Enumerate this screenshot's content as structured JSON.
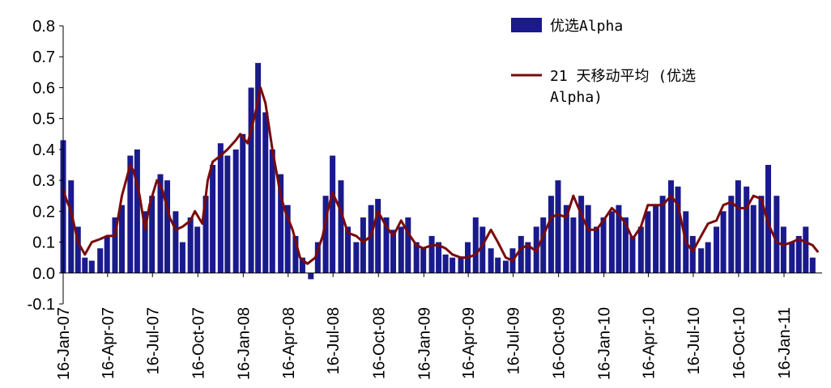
{
  "chart_data": {
    "type": "bar",
    "title": "",
    "xlabel": "",
    "ylabel": "",
    "ylim": [
      -0.1,
      0.8
    ],
    "yticks": [
      "-0.1",
      "0.0",
      "0.1",
      "0.2",
      "0.3",
      "0.4",
      "0.5",
      "0.6",
      "0.7",
      "0.8"
    ],
    "xticks": [
      "16-Jan-07",
      "16-Apr-07",
      "16-Jul-07",
      "16-Oct-07",
      "16-Jan-08",
      "16-Apr-08",
      "16-Jul-08",
      "16-Oct-08",
      "16-Jan-09",
      "16-Apr-09",
      "16-Jul-09",
      "16-Oct-09",
      "16-Jan-10",
      "16-Apr-10",
      "16-Jul-10",
      "16-Oct-10",
      "16-Jan-11"
    ],
    "grid": false,
    "legend_position": "top-right",
    "series": [
      {
        "name": "优选Alpha",
        "kind": "bar",
        "color": "#1a1a8c",
        "x": [
          "2007-01-16",
          "2007-02-01",
          "2007-02-15",
          "2007-03-01",
          "2007-03-15",
          "2007-04-01",
          "2007-04-15",
          "2007-05-01",
          "2007-05-15",
          "2007-06-01",
          "2007-06-15",
          "2007-07-01",
          "2007-07-15",
          "2007-08-01",
          "2007-08-15",
          "2007-09-01",
          "2007-09-15",
          "2007-10-01",
          "2007-10-15",
          "2007-11-01",
          "2007-11-15",
          "2007-12-01",
          "2007-12-15",
          "2008-01-01",
          "2008-01-15",
          "2008-02-01",
          "2008-02-15",
          "2008-03-01",
          "2008-03-15",
          "2008-04-01",
          "2008-04-15",
          "2008-05-01",
          "2008-05-15",
          "2008-06-01",
          "2008-06-15",
          "2008-07-01",
          "2008-07-15",
          "2008-08-01",
          "2008-08-15",
          "2008-09-01",
          "2008-09-15",
          "2008-10-01",
          "2008-10-15",
          "2008-11-01",
          "2008-11-15",
          "2008-12-01",
          "2008-12-15",
          "2009-01-01",
          "2009-01-15",
          "2009-02-01",
          "2009-02-15",
          "2009-03-01",
          "2009-03-15",
          "2009-04-01",
          "2009-04-15",
          "2009-05-01",
          "2009-05-15",
          "2009-06-01",
          "2009-06-15",
          "2009-07-01",
          "2009-07-15",
          "2009-08-01",
          "2009-08-15",
          "2009-09-01",
          "2009-09-15",
          "2009-10-01",
          "2009-10-15",
          "2009-11-01",
          "2009-11-15",
          "2009-12-01",
          "2009-12-15",
          "2010-01-01",
          "2010-01-15",
          "2010-02-01",
          "2010-02-15",
          "2010-03-01",
          "2010-03-15",
          "2010-04-01",
          "2010-04-15",
          "2010-05-01",
          "2010-05-15",
          "2010-06-01",
          "2010-06-15",
          "2010-07-01",
          "2010-07-15",
          "2010-08-01",
          "2010-08-15",
          "2010-09-01",
          "2010-09-15",
          "2010-10-01",
          "2010-10-15",
          "2010-11-01",
          "2010-11-15",
          "2010-12-01",
          "2010-12-15",
          "2011-01-01",
          "2011-01-15",
          "2011-02-01",
          "2011-02-15",
          "2011-03-01",
          "2011-03-15"
        ],
        "values": [
          0.43,
          0.3,
          0.15,
          0.05,
          0.04,
          0.08,
          0.12,
          0.18,
          0.22,
          0.38,
          0.4,
          0.2,
          0.25,
          0.32,
          0.3,
          0.2,
          0.1,
          0.18,
          0.15,
          0.25,
          0.35,
          0.42,
          0.38,
          0.4,
          0.45,
          0.6,
          0.68,
          0.52,
          0.4,
          0.32,
          0.22,
          0.12,
          0.05,
          -0.02,
          0.1,
          0.25,
          0.38,
          0.3,
          0.15,
          0.1,
          0.18,
          0.22,
          0.24,
          0.18,
          0.14,
          0.15,
          0.18,
          0.1,
          0.08,
          0.12,
          0.1,
          0.06,
          0.05,
          0.05,
          0.1,
          0.18,
          0.15,
          0.08,
          0.05,
          0.04,
          0.08,
          0.12,
          0.1,
          0.15,
          0.18,
          0.25,
          0.3,
          0.22,
          0.18,
          0.25,
          0.22,
          0.15,
          0.18,
          0.2,
          0.22,
          0.18,
          0.12,
          0.15,
          0.2,
          0.22,
          0.25,
          0.3,
          0.28,
          0.2,
          0.12,
          0.08,
          0.1,
          0.15,
          0.2,
          0.25,
          0.3,
          0.28,
          0.22,
          0.25,
          0.35,
          0.25,
          0.15,
          0.1,
          0.12,
          0.15,
          0.05
        ]
      },
      {
        "name": "21 天移动平均 (优选Alpha)",
        "kind": "line",
        "color": "#7a0a0a",
        "x": [
          "2007-01-16",
          "2007-01-22",
          "2007-02-01",
          "2007-02-15",
          "2007-03-01",
          "2007-03-15",
          "2007-04-01",
          "2007-04-15",
          "2007-05-01",
          "2007-05-15",
          "2007-06-01",
          "2007-06-08",
          "2007-06-20",
          "2007-07-01",
          "2007-07-10",
          "2007-07-25",
          "2007-08-05",
          "2007-08-20",
          "2007-09-01",
          "2007-09-15",
          "2007-10-01",
          "2007-10-10",
          "2007-10-25",
          "2007-11-05",
          "2007-11-15",
          "2007-12-01",
          "2007-12-15",
          "2008-01-01",
          "2008-01-10",
          "2008-01-25",
          "2008-02-10",
          "2008-02-20",
          "2008-03-01",
          "2008-03-15",
          "2008-04-01",
          "2008-04-10",
          "2008-04-25",
          "2008-05-10",
          "2008-05-25",
          "2008-06-10",
          "2008-06-25",
          "2008-07-05",
          "2008-07-15",
          "2008-08-01",
          "2008-08-15",
          "2008-09-01",
          "2008-09-15",
          "2008-10-01",
          "2008-10-15",
          "2008-11-01",
          "2008-11-15",
          "2008-12-01",
          "2008-12-15",
          "2009-01-01",
          "2009-01-15",
          "2009-02-01",
          "2009-02-15",
          "2009-03-01",
          "2009-03-15",
          "2009-04-01",
          "2009-04-15",
          "2009-05-01",
          "2009-05-15",
          "2009-06-01",
          "2009-06-15",
          "2009-07-01",
          "2009-07-15",
          "2009-08-01",
          "2009-08-15",
          "2009-09-01",
          "2009-09-15",
          "2009-10-01",
          "2009-10-15",
          "2009-11-01",
          "2009-11-15",
          "2009-12-01",
          "2009-12-15",
          "2010-01-01",
          "2010-01-15",
          "2010-02-01",
          "2010-02-15",
          "2010-03-01",
          "2010-03-15",
          "2010-04-01",
          "2010-04-15",
          "2010-05-01",
          "2010-05-15",
          "2010-06-01",
          "2010-06-15",
          "2010-07-01",
          "2010-07-15",
          "2010-08-01",
          "2010-08-15",
          "2010-09-01",
          "2010-09-15",
          "2010-10-01",
          "2010-10-15",
          "2010-11-01",
          "2010-11-15",
          "2010-12-01",
          "2010-12-15",
          "2011-01-01",
          "2011-01-15",
          "2011-02-01",
          "2011-02-15",
          "2011-03-01",
          "2011-03-15",
          "2011-03-25"
        ],
        "values": [
          0.27,
          0.24,
          0.2,
          0.1,
          0.06,
          0.1,
          0.11,
          0.12,
          0.12,
          0.25,
          0.35,
          0.33,
          0.25,
          0.14,
          0.22,
          0.3,
          0.27,
          0.18,
          0.14,
          0.15,
          0.17,
          0.2,
          0.16,
          0.3,
          0.36,
          0.38,
          0.4,
          0.43,
          0.45,
          0.42,
          0.52,
          0.6,
          0.55,
          0.4,
          0.25,
          0.2,
          0.14,
          0.05,
          0.03,
          0.05,
          0.12,
          0.2,
          0.26,
          0.2,
          0.13,
          0.12,
          0.1,
          0.12,
          0.2,
          0.15,
          0.12,
          0.17,
          0.13,
          0.09,
          0.08,
          0.09,
          0.09,
          0.08,
          0.06,
          0.05,
          0.05,
          0.06,
          0.09,
          0.14,
          0.1,
          0.05,
          0.04,
          0.08,
          0.09,
          0.07,
          0.12,
          0.18,
          0.19,
          0.18,
          0.25,
          0.19,
          0.14,
          0.14,
          0.17,
          0.21,
          0.19,
          0.16,
          0.11,
          0.15,
          0.22,
          0.22,
          0.22,
          0.25,
          0.22,
          0.1,
          0.07,
          0.12,
          0.16,
          0.17,
          0.22,
          0.23,
          0.21,
          0.21,
          0.25,
          0.24,
          0.16,
          0.1,
          0.09,
          0.1,
          0.11,
          0.1,
          0.09,
          0.07
        ]
      }
    ]
  }
}
